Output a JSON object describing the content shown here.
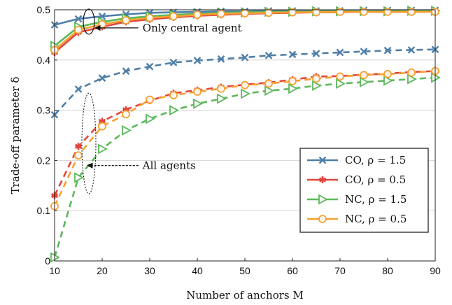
{
  "chart_data": {
    "type": "line",
    "xlabel": "Number of anchors M",
    "ylabel": "Trade-off parameter δ",
    "xlim": [
      10,
      90
    ],
    "ylim": [
      0,
      0.5
    ],
    "xticks": [
      10,
      20,
      30,
      40,
      50,
      60,
      70,
      80,
      90
    ],
    "yticks": [
      0,
      0.1,
      0.2,
      0.3,
      0.4,
      0.5
    ],
    "ytick_labels": [
      "0",
      "0.1",
      "0.2",
      "0.3",
      "0.4",
      "0.5"
    ],
    "grid": "horizontal",
    "legend_position": "lower-right",
    "x": [
      10,
      15,
      20,
      25,
      30,
      35,
      40,
      45,
      50,
      55,
      60,
      65,
      70,
      75,
      80,
      85,
      90
    ],
    "series": [
      {
        "name": "CO, ρ = 1.5",
        "color": "#4f7fa8",
        "marker": "x",
        "central": [
          0.47,
          0.482,
          0.487,
          0.491,
          0.494,
          0.495,
          0.496,
          0.497,
          0.497,
          0.498,
          0.498,
          0.498,
          0.498,
          0.499,
          0.499,
          0.499,
          0.499
        ],
        "all": [
          0.291,
          0.342,
          0.364,
          0.378,
          0.387,
          0.395,
          0.399,
          0.402,
          0.405,
          0.409,
          0.411,
          0.413,
          0.415,
          0.417,
          0.419,
          0.42,
          0.421
        ]
      },
      {
        "name": "CO, ρ = 0.5",
        "color": "#e0463e",
        "marker": "asterisk",
        "central": [
          0.415,
          0.455,
          0.466,
          0.476,
          0.481,
          0.485,
          0.488,
          0.49,
          0.492,
          0.493,
          0.494,
          0.495,
          0.495,
          0.496,
          0.496,
          0.496,
          0.497
        ],
        "all": [
          0.13,
          0.228,
          0.278,
          0.301,
          0.319,
          0.334,
          0.34,
          0.346,
          0.351,
          0.355,
          0.361,
          0.367,
          0.368,
          0.371,
          0.373,
          0.376,
          0.378
        ]
      },
      {
        "name": "NC, ρ = 1.5",
        "color": "#5cb85c",
        "marker": "triangle-right",
        "central": [
          0.428,
          0.466,
          0.476,
          0.483,
          0.487,
          0.49,
          0.492,
          0.494,
          0.495,
          0.496,
          0.496,
          0.497,
          0.497,
          0.497,
          0.497,
          0.498,
          0.498
        ],
        "all": [
          0.007,
          0.166,
          0.223,
          0.26,
          0.283,
          0.3,
          0.313,
          0.323,
          0.333,
          0.339,
          0.343,
          0.349,
          0.353,
          0.356,
          0.359,
          0.362,
          0.365
        ]
      },
      {
        "name": "NC, ρ = 0.5",
        "color": "#f7a030",
        "marker": "circle",
        "central": [
          0.42,
          0.46,
          0.471,
          0.479,
          0.484,
          0.487,
          0.49,
          0.492,
          0.493,
          0.494,
          0.495,
          0.495,
          0.496,
          0.496,
          0.496,
          0.496,
          0.496
        ],
        "all": [
          0.109,
          0.21,
          0.268,
          0.292,
          0.321,
          0.33,
          0.337,
          0.343,
          0.35,
          0.353,
          0.358,
          0.363,
          0.367,
          0.37,
          0.372,
          0.375,
          0.378
        ]
      }
    ],
    "annotations": [
      {
        "text": "Only central agent",
        "x": 17.5,
        "y": 0.475,
        "text_x": 28.5,
        "text_y": 0.457
      },
      {
        "text": "All agents",
        "x": 17.5,
        "y": 0.245,
        "text_x": 28.5,
        "text_y": 0.183
      }
    ]
  }
}
